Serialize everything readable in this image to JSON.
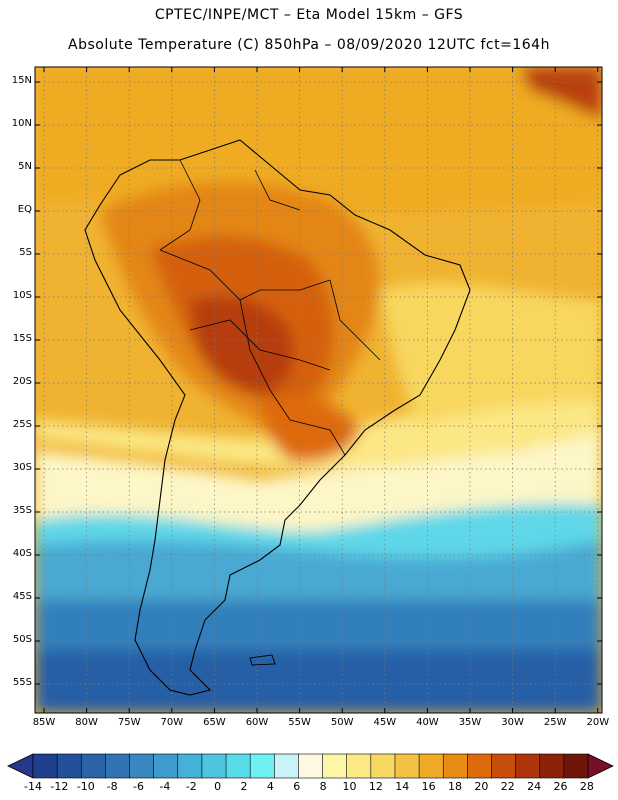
{
  "header": {
    "line1": "CPTEC/INPE/MCT –  Eta Model 15km – GFS",
    "line2": "Absolute Temperature (C) 850hPa – 08/09/2020 12UTC fct=164h"
  },
  "axes": {
    "lat_labels": [
      "15N",
      "10N",
      "5N",
      "EQ",
      "5S",
      "10S",
      "15S",
      "20S",
      "25S",
      "30S",
      "35S",
      "40S",
      "45S",
      "50S",
      "55S"
    ],
    "lon_labels": [
      "85W",
      "80W",
      "75W",
      "70W",
      "65W",
      "60W",
      "55W",
      "50W",
      "45W",
      "40W",
      "35W",
      "30W",
      "25W",
      "20W"
    ]
  },
  "colorbar": {
    "labels": [
      "-14",
      "-12",
      "-10",
      "-8",
      "-6",
      "-4",
      "-2",
      "0",
      "2",
      "4",
      "6",
      "8",
      "10",
      "12",
      "14",
      "16",
      "18",
      "20",
      "22",
      "24",
      "26",
      "28"
    ],
    "colors": [
      "#1f3f8f",
      "#23509b",
      "#2a63a8",
      "#3174b5",
      "#3a88c2",
      "#3f9bcd",
      "#45b0d8",
      "#4ec5e0",
      "#58dcea",
      "#6ff0f5",
      "#c9f3f8",
      "#fdf8e2",
      "#fdf5a8",
      "#fbe985",
      "#f8d864",
      "#f3c242",
      "#efab25",
      "#e88c16",
      "#de6a0e",
      "#c94d0a",
      "#ad3509",
      "#8c2208",
      "#6e160a"
    ],
    "under_color": "#27378a",
    "over_color": "#7a0e28"
  }
}
